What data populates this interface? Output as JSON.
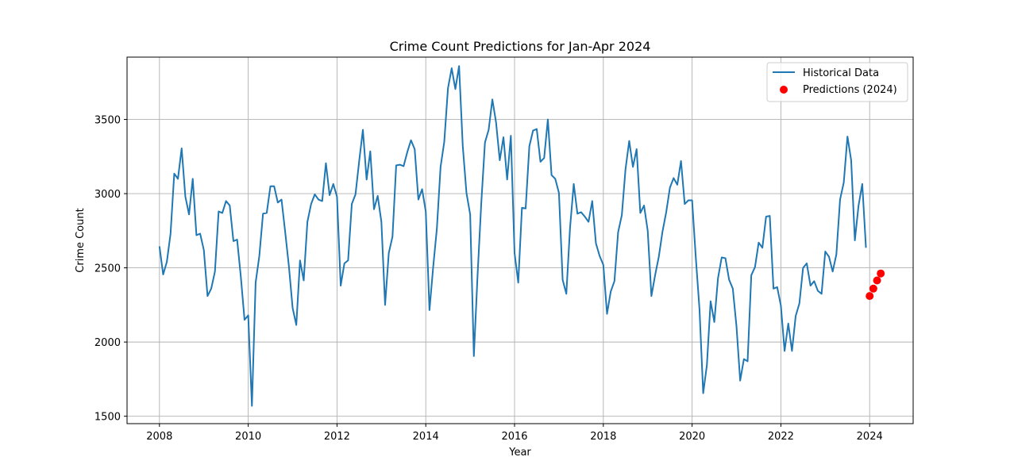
{
  "chart_data": {
    "type": "line",
    "title": "Crime Count Predictions for Jan-Apr 2024",
    "xlabel": "Year",
    "ylabel": "Crime Count",
    "xlim": [
      2007.27,
      2024.98
    ],
    "ylim": [
      1450,
      3920
    ],
    "xticks": [
      2008,
      2010,
      2012,
      2014,
      2016,
      2018,
      2020,
      2022,
      2024
    ],
    "yticks": [
      1500,
      2000,
      2500,
      3000,
      3500
    ],
    "grid": true,
    "legend_placement": "top-right",
    "series": [
      {
        "name": "Historical Data",
        "kind": "line",
        "color": "#1f77b4",
        "start_year": 2008,
        "start_month": 1,
        "values": [
          2645,
          2455,
          2540,
          2730,
          3135,
          3100,
          3305,
          2980,
          2860,
          3100,
          2720,
          2730,
          2620,
          2310,
          2360,
          2475,
          2880,
          2870,
          2950,
          2920,
          2680,
          2690,
          2440,
          2150,
          2180,
          1570,
          2400,
          2580,
          2865,
          2870,
          3050,
          3050,
          2940,
          2960,
          2740,
          2510,
          2230,
          2115,
          2550,
          2415,
          2810,
          2930,
          2995,
          2960,
          2950,
          3205,
          2990,
          3065,
          2980,
          2380,
          2530,
          2550,
          2930,
          2995,
          3220,
          3430,
          3095,
          3285,
          2895,
          2985,
          2810,
          2250,
          2600,
          2710,
          3190,
          3195,
          3185,
          3280,
          3360,
          3300,
          2960,
          3030,
          2880,
          2215,
          2505,
          2765,
          3180,
          3350,
          3710,
          3845,
          3705,
          3860,
          3320,
          3005,
          2860,
          1905,
          2450,
          2935,
          3345,
          3430,
          3635,
          3480,
          3225,
          3380,
          3095,
          3390,
          2600,
          2400,
          2905,
          2900,
          3320,
          3425,
          3435,
          3215,
          3240,
          3500,
          3125,
          3100,
          3005,
          2420,
          2325,
          2770,
          3065,
          2865,
          2875,
          2845,
          2810,
          2950,
          2665,
          2580,
          2520,
          2190,
          2340,
          2410,
          2740,
          2855,
          3165,
          3355,
          3180,
          3300,
          2870,
          2920,
          2750,
          2310,
          2450,
          2575,
          2745,
          2875,
          3040,
          3105,
          3060,
          3220,
          2930,
          2955,
          2955,
          2570,
          2220,
          1655,
          1845,
          2275,
          2135,
          2430,
          2570,
          2565,
          2420,
          2360,
          2105,
          1740,
          1885,
          1870,
          2450,
          2505,
          2670,
          2635,
          2845,
          2850,
          2360,
          2370,
          2245,
          1940,
          2125,
          1940,
          2175,
          2260,
          2500,
          2530,
          2380,
          2410,
          2345,
          2325,
          2610,
          2575,
          2475,
          2590,
          2960,
          3075,
          3385,
          3225,
          2685,
          2920,
          3065,
          2635
        ]
      },
      {
        "name": "Predictions (2024)",
        "kind": "scatter",
        "color": "#ff0000",
        "x": [
          "2024-01",
          "2024-02",
          "2024-03",
          "2024-04"
        ],
        "values": [
          2310,
          2360,
          2415,
          2462
        ]
      }
    ]
  }
}
